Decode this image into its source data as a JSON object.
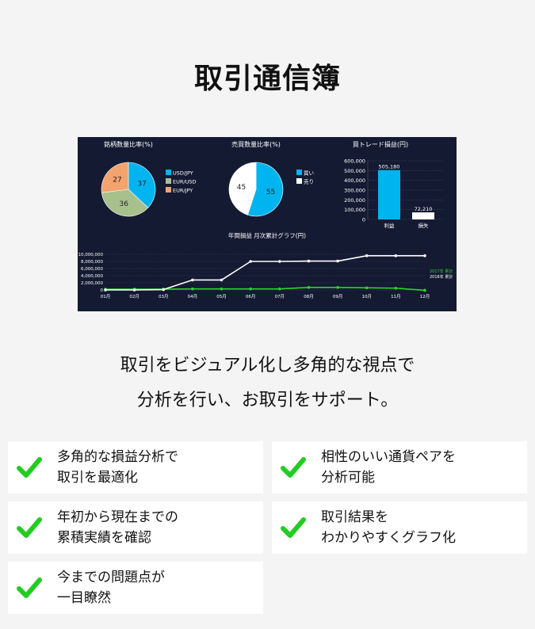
{
  "title": "取引通信簿",
  "dashboard": {
    "theme": {
      "bg": "#151a33",
      "cyan": "#00b4f0",
      "olive": "#a8c08c",
      "orange": "#f3a36e",
      "white": "#ffffff",
      "green": "#28d628",
      "grid": "#4a5072",
      "text": "#ffffff"
    },
    "pie1": {
      "title": "銘柄数量比率(%)",
      "slices": [
        {
          "label": "USD/JPY",
          "value": 37,
          "color": "#00b4f0"
        },
        {
          "label": "EUR/USD",
          "value": 36,
          "color": "#a8c08c"
        },
        {
          "label": "EUR/JPY",
          "value": 27,
          "color": "#f3a36e"
        }
      ]
    },
    "pie2": {
      "title": "売買数量比率(%)",
      "slices": [
        {
          "label": "買い",
          "value": 55,
          "color": "#00b4f0"
        },
        {
          "label": "売り",
          "value": 45,
          "color": "#ffffff"
        }
      ]
    },
    "bar": {
      "title": "買トレード損益(円)",
      "yticks": [
        "600,000",
        "500,000",
        "400,000",
        "300,000",
        "200,000",
        "100,000",
        "0"
      ],
      "ymax": 600000,
      "bars": [
        {
          "label": "利益",
          "value": 505180,
          "value_label": "505,180",
          "color": "#00b4f0"
        },
        {
          "label": "損失",
          "value": 72210,
          "value_label": "72,210",
          "color": "#ffffff"
        }
      ]
    },
    "line": {
      "title": "年間損益 月次累計グラフ(円)",
      "yticks": [
        "10,000,000",
        "8,000,000",
        "6,000,000",
        "4,000,000",
        "2,000,000",
        "0"
      ],
      "ymax": 10000000,
      "months": [
        "01月",
        "02月",
        "03月",
        "04月",
        "05月",
        "06月",
        "07月",
        "08月",
        "09月",
        "10月",
        "11月",
        "12月"
      ],
      "series": [
        {
          "name": "2017年 累計",
          "color": "#28d628",
          "values": [
            200000,
            200000,
            200000,
            300000,
            300000,
            300000,
            300000,
            700000,
            700000,
            600000,
            500000,
            -100000
          ]
        },
        {
          "name": "2016年 累計",
          "color": "#ffffff",
          "values": [
            0,
            0,
            100000,
            2800000,
            2800000,
            8000000,
            8000000,
            8100000,
            8100000,
            9600000,
            9600000,
            9600000
          ]
        }
      ]
    }
  },
  "tagline": {
    "line1": "取引をビジュアル化し多角的な視点で",
    "line2": "分析を行い、お取引をサポート。"
  },
  "features": [
    {
      "line1": "多角的な損益分析で",
      "line2": "取引を最適化"
    },
    {
      "line1": "相性のいい通貨ペアを",
      "line2": "分析可能"
    },
    {
      "line1": "年初から現在までの",
      "line2": "累積実績を確認"
    },
    {
      "line1": "取引結果を",
      "line2": "わかりやすくグラフ化"
    },
    {
      "line1": "今までの問題点が",
      "line2": "一目瞭然"
    }
  ],
  "check_icon_color": "#22cc22"
}
